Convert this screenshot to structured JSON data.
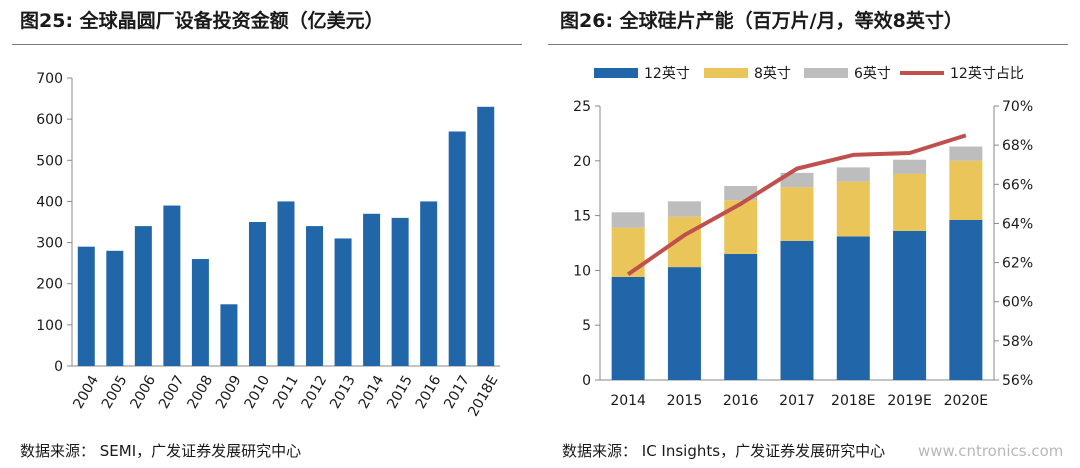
{
  "left": {
    "title": "图25:  全球晶圆厂设备投资金额（亿美元）",
    "source": "数据来源： SEMI，广发证券发展研究中心"
  },
  "right": {
    "title": "图26:  全球硅片产能（百万片/月，等效8英寸）",
    "source": "数据来源： IC Insights，广发证券发展研究中心"
  },
  "watermark": "www.cntronics.com",
  "colors": {
    "blue": "#2166a8",
    "yellow": "#eac65a",
    "gray": "#bdbdbd",
    "red": "#c0504d"
  },
  "chart_data": [
    {
      "type": "bar",
      "title": "全球晶圆厂设备投资金额（亿美元）",
      "categories": [
        "2004",
        "2005",
        "2006",
        "2007",
        "2008",
        "2009",
        "2010",
        "2011",
        "2012",
        "2013",
        "2014",
        "2015",
        "2016",
        "2017",
        "2018E"
      ],
      "values": [
        290,
        280,
        340,
        390,
        260,
        150,
        350,
        400,
        340,
        310,
        370,
        360,
        400,
        570,
        630
      ],
      "ylim": [
        0,
        700
      ],
      "yticks": [
        0,
        100,
        200,
        300,
        400,
        500,
        600,
        700
      ],
      "xlabel": "",
      "ylabel": "",
      "legend": "none"
    },
    {
      "type": "bar",
      "stacked": true,
      "title": "全球硅片产能（百万片/月，等效8英寸）",
      "categories": [
        "2014",
        "2015",
        "2016",
        "2017",
        "2018E",
        "2019E",
        "2020E"
      ],
      "series": [
        {
          "name": "12英寸",
          "values": [
            9.4,
            10.3,
            11.5,
            12.7,
            13.1,
            13.6,
            14.6
          ]
        },
        {
          "name": "8英寸",
          "values": [
            4.5,
            4.6,
            4.9,
            4.9,
            5.0,
            5.2,
            5.4
          ]
        },
        {
          "name": "6英寸",
          "values": [
            1.4,
            1.4,
            1.3,
            1.3,
            1.3,
            1.3,
            1.3
          ]
        }
      ],
      "line_series": {
        "name": "12英寸占比",
        "axis": "right",
        "values": [
          61.4,
          63.4,
          65.0,
          66.8,
          67.5,
          67.6,
          68.5
        ]
      },
      "ylim": [
        0,
        25
      ],
      "yticks": [
        "0",
        "5",
        "10",
        "15",
        "20",
        "25"
      ],
      "y2lim": [
        56,
        70
      ],
      "y2ticks": [
        "56%",
        "58%",
        "60%",
        "62%",
        "64%",
        "66%",
        "68%",
        "70%"
      ],
      "legend": "top"
    }
  ]
}
